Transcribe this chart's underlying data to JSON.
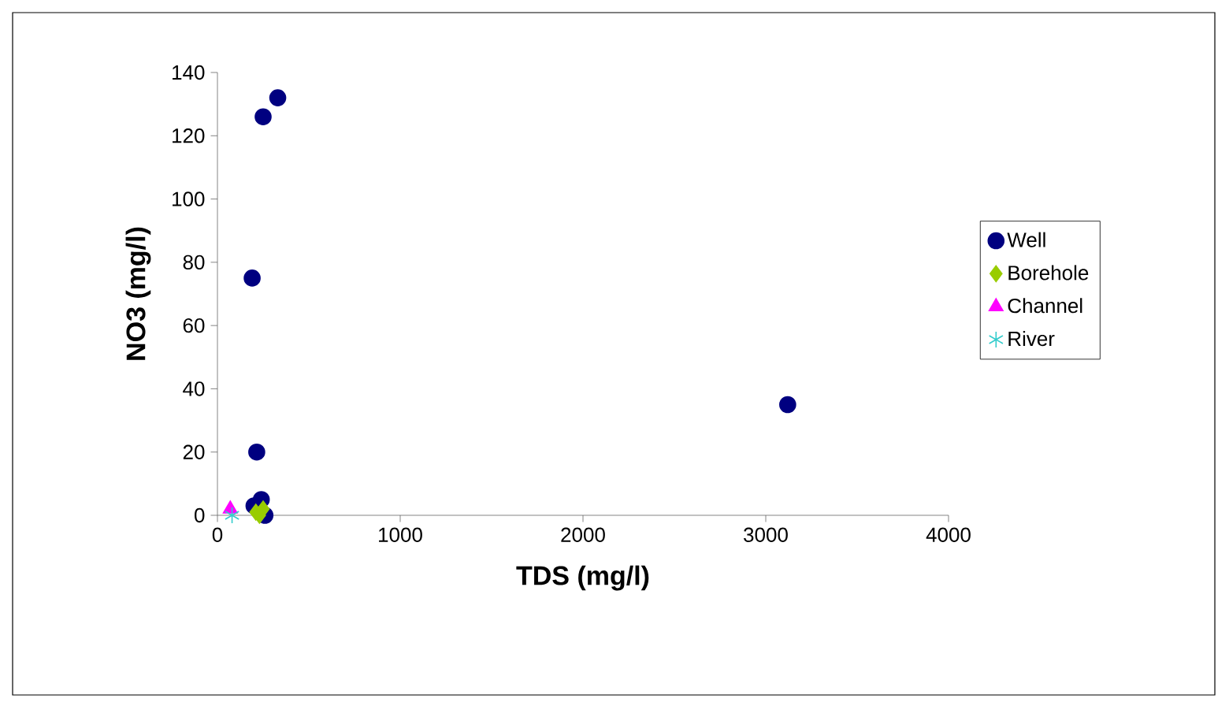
{
  "chart_data": {
    "type": "scatter",
    "xlabel": "TDS (mg/l)",
    "ylabel": "NO3 (mg/l)",
    "xlim": [
      0,
      4000
    ],
    "ylim": [
      0,
      140
    ],
    "xticks": [
      0,
      1000,
      2000,
      3000,
      4000
    ],
    "yticks": [
      0,
      20,
      40,
      60,
      80,
      100,
      120,
      140
    ],
    "grid": false,
    "legend": "right",
    "series": [
      {
        "name": "Well",
        "color": "#000080",
        "marker": "circle",
        "x": [
          330,
          250,
          190,
          215,
          240,
          260,
          200,
          3120
        ],
        "values": [
          132,
          126,
          75,
          20,
          5,
          0,
          3,
          35
        ]
      },
      {
        "name": "Borehole",
        "color": "#99cc00",
        "marker": "diamond",
        "x": [
          210,
          250,
          230
        ],
        "values": [
          1,
          2,
          0
        ]
      },
      {
        "name": "Channel",
        "color": "#ff00ff",
        "marker": "triangle",
        "x": [
          70
        ],
        "values": [
          2
        ]
      },
      {
        "name": "River",
        "color": "#33cccc",
        "marker": "cross",
        "x": [
          80
        ],
        "values": [
          0
        ]
      }
    ]
  }
}
